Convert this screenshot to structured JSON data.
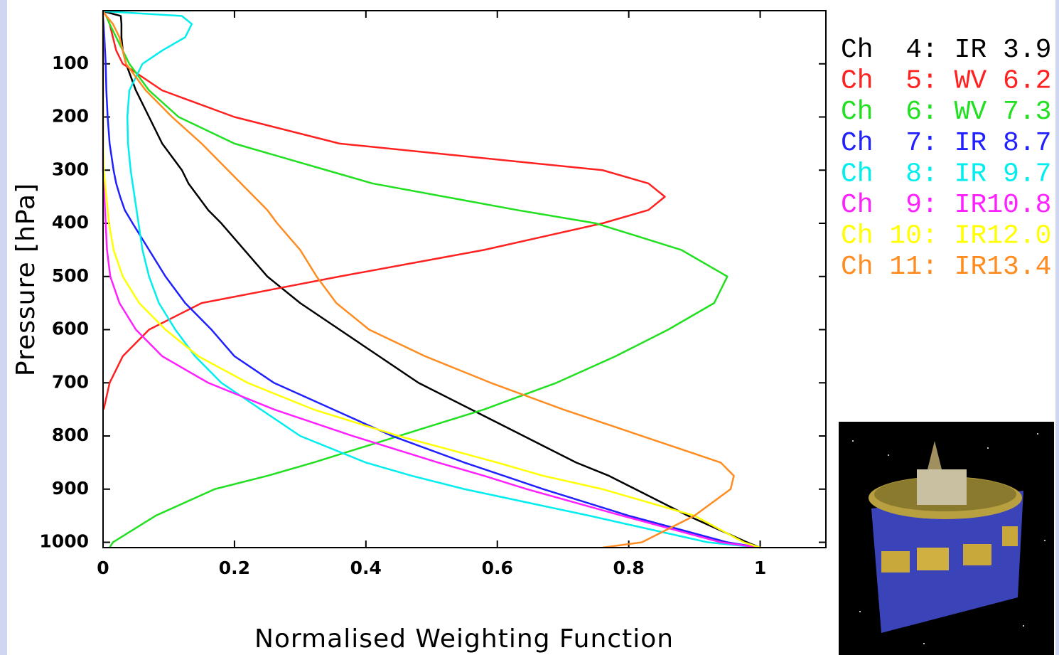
{
  "chart_data": {
    "type": "line",
    "x_label": "Normalised Weighting Function",
    "y_label": "Pressure [hPa]",
    "xlim": [
      0,
      1.1
    ],
    "xticks": [
      0,
      0.2,
      0.4,
      0.6,
      0.8,
      1
    ],
    "ylim": [
      1010,
      0
    ],
    "yticks": [
      100,
      200,
      300,
      400,
      500,
      600,
      700,
      800,
      900,
      1000
    ],
    "y": [
      1,
      10,
      25,
      50,
      75,
      100,
      150,
      200,
      250,
      300,
      325,
      350,
      375,
      400,
      450,
      500,
      550,
      600,
      650,
      700,
      750,
      800,
      850,
      875,
      900,
      950,
      1000,
      1010
    ],
    "series": [
      {
        "name": "Ch  4: IR 3.9",
        "color": "#000000",
        "values": [
          0,
          0.027,
          0.028,
          0.028,
          0.03,
          0.035,
          0.05,
          0.07,
          0.09,
          0.12,
          0.13,
          0.145,
          0.16,
          0.18,
          0.215,
          0.25,
          0.3,
          0.36,
          0.42,
          0.48,
          0.56,
          0.64,
          0.72,
          0.77,
          0.81,
          0.89,
          0.98,
          1
        ]
      },
      {
        "name": "Ch  5: WV 6.2",
        "color": "#ff2020",
        "values": [
          0,
          0.005,
          0.01,
          0.015,
          0.02,
          0.03,
          0.09,
          0.2,
          0.36,
          0.76,
          0.83,
          0.855,
          0.83,
          0.76,
          0.58,
          0.36,
          0.15,
          0.07,
          0.03,
          0.01,
          0.001,
          null,
          null,
          null,
          null,
          null,
          null,
          null
        ]
      },
      {
        "name": "Ch  6: WV 7.3",
        "color": "#20e020",
        "values": [
          0,
          0.005,
          0.01,
          0.02,
          0.03,
          0.04,
          0.07,
          0.115,
          0.2,
          0.34,
          0.41,
          0.52,
          0.63,
          0.75,
          0.88,
          0.95,
          0.93,
          0.86,
          0.78,
          0.69,
          0.58,
          0.45,
          0.32,
          0.25,
          0.17,
          0.08,
          0.015,
          0.01
        ]
      },
      {
        "name": "Ch  7: IR 8.7",
        "color": "#2020ff",
        "values": [
          0,
          0,
          0.001,
          0.002,
          0.003,
          0.004,
          0.005,
          0.007,
          0.01,
          0.016,
          0.02,
          0.026,
          0.033,
          0.045,
          0.07,
          0.095,
          0.125,
          0.165,
          0.2,
          0.26,
          0.35,
          0.44,
          0.55,
          0.61,
          0.67,
          0.8,
          0.95,
          1
        ]
      },
      {
        "name": "Ch  8: IR 9.7",
        "color": "#00eeee",
        "values": [
          0,
          0.12,
          0.135,
          0.125,
          0.09,
          0.06,
          0.04,
          0.037,
          0.038,
          0.042,
          0.045,
          0.048,
          0.051,
          0.054,
          0.06,
          0.07,
          0.085,
          0.11,
          0.14,
          0.18,
          0.24,
          0.3,
          0.4,
          0.47,
          0.55,
          0.74,
          0.92,
          1
        ]
      },
      {
        "name": "Ch  9: IR10.8",
        "color": "#ff20ff",
        "values": [
          0,
          0,
          0,
          0,
          0,
          0,
          0,
          0,
          0,
          0,
          0.001,
          0.002,
          0.003,
          0.004,
          0.006,
          0.011,
          0.025,
          0.05,
          0.09,
          0.16,
          0.26,
          0.38,
          0.51,
          0.58,
          0.645,
          0.79,
          0.94,
          1
        ]
      },
      {
        "name": "Ch 10: IR12.0",
        "color": "#ffff00",
        "values": [
          0,
          0,
          0,
          0,
          0,
          0,
          0,
          0,
          0,
          0.001,
          0.003,
          0.005,
          0.007,
          0.009,
          0.016,
          0.03,
          0.055,
          0.095,
          0.145,
          0.22,
          0.32,
          0.45,
          0.6,
          0.67,
          0.76,
          0.9,
          0.975,
          1
        ]
      },
      {
        "name": "Ch 11: IR13.4",
        "color": "#ff8c20",
        "values": [
          0,
          0.005,
          0.015,
          0.025,
          0.03,
          0.035,
          0.065,
          0.105,
          0.15,
          0.19,
          0.21,
          0.23,
          0.25,
          0.265,
          0.3,
          0.325,
          0.355,
          0.405,
          0.49,
          0.59,
          0.7,
          0.82,
          0.94,
          0.96,
          0.955,
          0.9,
          0.82,
          0.76
        ]
      }
    ]
  }
}
